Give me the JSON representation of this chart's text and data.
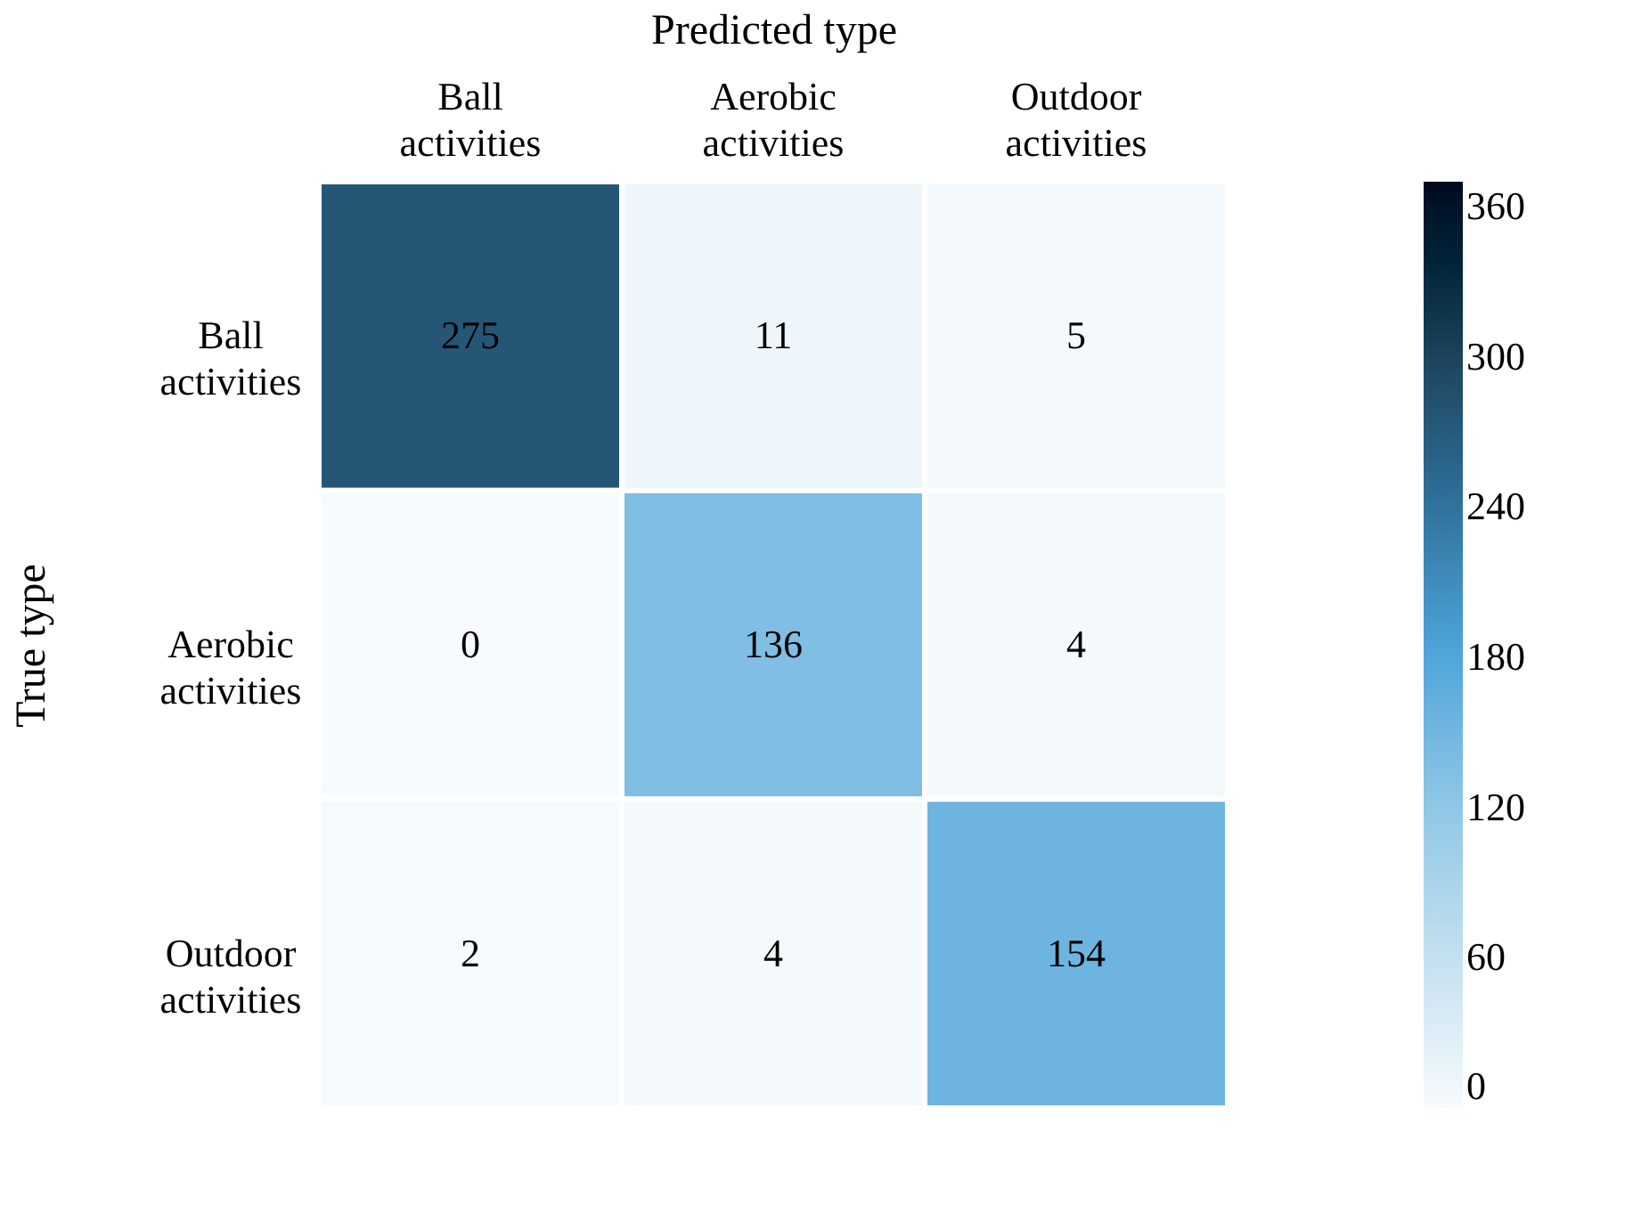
{
  "chart_data": {
    "type": "heatmap",
    "xlabel": "Predicted type",
    "ylabel": "True type",
    "categories": [
      "Ball activities",
      "Aerobic activities",
      "Outdoor activities"
    ],
    "y_categories": [
      "Ball activities",
      "Aerobic activities",
      "Outdoor activities"
    ],
    "cells": [
      [
        275,
        11,
        5
      ],
      [
        0,
        136,
        4
      ],
      [
        2,
        4,
        154
      ]
    ],
    "data_labels": true,
    "clim": [
      0,
      370
    ],
    "cticks": [
      0,
      60,
      120,
      180,
      240,
      300,
      360
    ]
  }
}
